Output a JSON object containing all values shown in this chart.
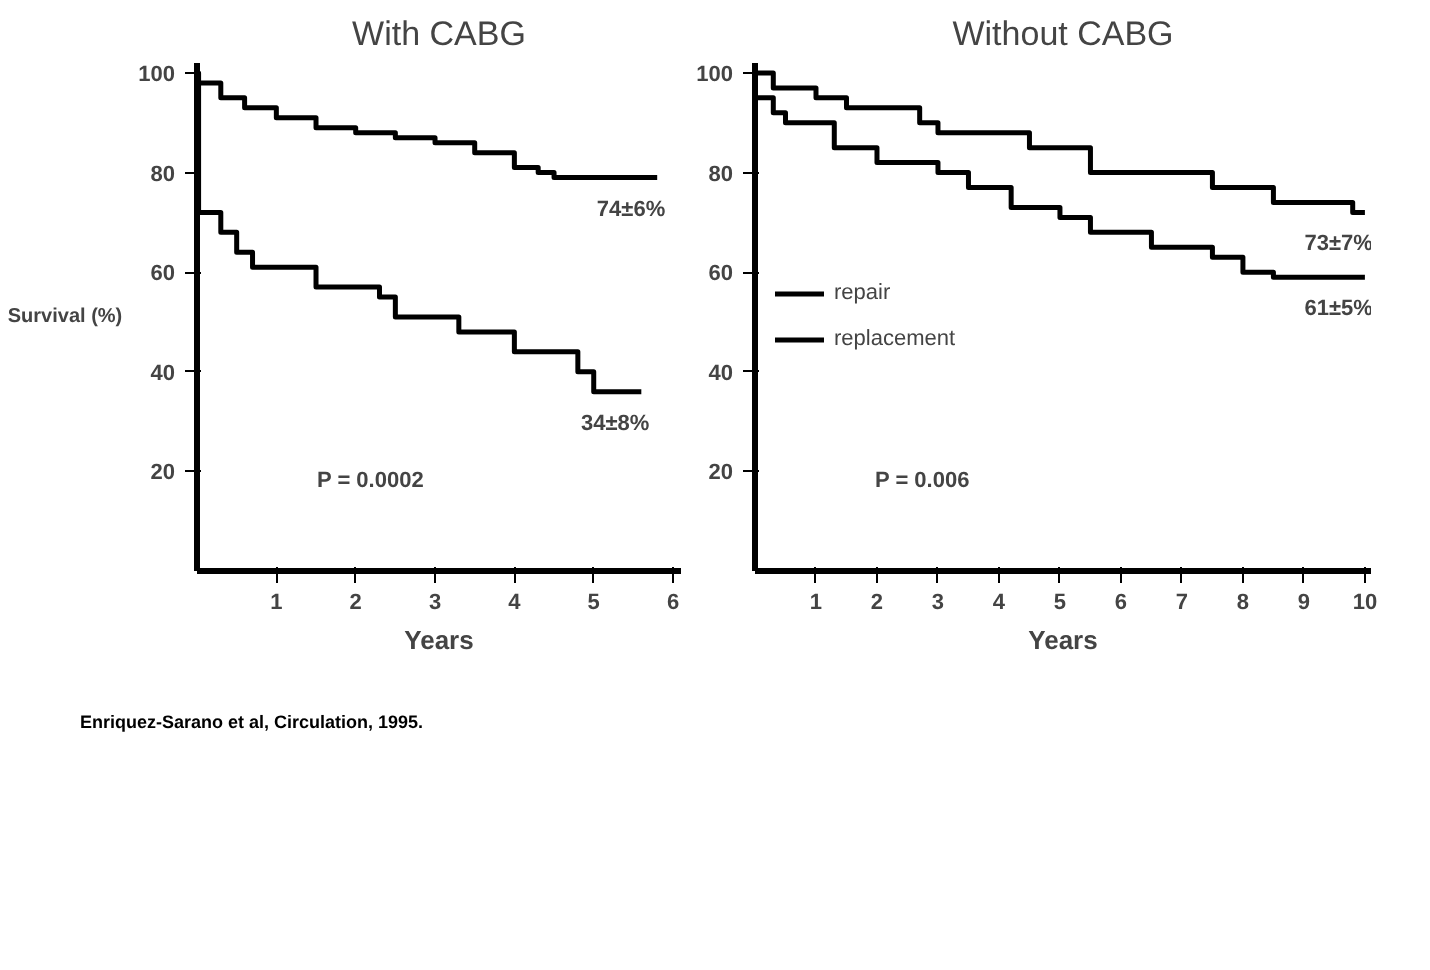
{
  "chart_data": [
    {
      "type": "step",
      "title": "With CABG",
      "xlabel": "Years",
      "ylabel": "Survival (%)",
      "xlim": [
        0,
        6.1
      ],
      "ylim": [
        0,
        102
      ],
      "xticks": [
        1,
        2,
        3,
        4,
        5,
        6
      ],
      "yticks": [
        20,
        40,
        60,
        80,
        100
      ],
      "grid": false,
      "legend": false,
      "series": [
        {
          "color": "#000000",
          "x": [
            0,
            0.3,
            0.6,
            1,
            1.5,
            2,
            2.5,
            3,
            3.5,
            4,
            4.3,
            4.5,
            5.8
          ],
          "values": [
            98,
            95,
            93,
            91,
            89,
            88,
            87,
            86,
            84,
            81,
            80,
            79,
            79
          ]
        },
        {
          "color": "#000000",
          "x": [
            0,
            0.02,
            0.3,
            0.5,
            0.7,
            1.5,
            2.3,
            2.5,
            3.3,
            4.0,
            4.8,
            5.0,
            5.6
          ],
          "values": [
            100,
            72,
            68,
            64,
            61,
            57,
            55,
            51,
            48,
            44,
            40,
            36,
            36
          ]
        }
      ],
      "annotations": [
        {
          "text": "74±6%",
          "x": 5.8,
          "y": 79
        },
        {
          "text": "34±8%",
          "x": 5.6,
          "y": 36
        },
        "P = 0.0002",
        "Enriquez-Sarano et al, Circulation, 1995."
      ]
    },
    {
      "type": "step",
      "title": "Without CABG",
      "xlabel": "Years",
      "xlim": [
        0,
        10.1
      ],
      "ylim": [
        0,
        102
      ],
      "xticks": [
        1,
        2,
        3,
        4,
        5,
        6,
        7,
        8,
        9,
        10
      ],
      "yticks": [
        20,
        40,
        60,
        80,
        100
      ],
      "grid": false,
      "legend": "left",
      "series": [
        {
          "name": "repair",
          "color": "#000000",
          "x": [
            0,
            0.3,
            1,
            1.5,
            2.7,
            3,
            4.5,
            5.5,
            7.5,
            8.5,
            9.8,
            10
          ],
          "values": [
            100,
            97,
            95,
            93,
            90,
            88,
            85,
            80,
            77,
            74,
            72,
            72
          ]
        },
        {
          "name": "replacement",
          "color": "#000000",
          "x": [
            0,
            0.3,
            0.5,
            1.3,
            2,
            3,
            3.5,
            4.2,
            5,
            5.5,
            6.5,
            7.5,
            8,
            8.5,
            10
          ],
          "values": [
            95,
            92,
            90,
            85,
            82,
            80,
            77,
            73,
            71,
            68,
            65,
            63,
            60,
            59,
            59
          ]
        }
      ],
      "annotations": [
        {
          "text": "73±7%",
          "x": 10,
          "y": 72
        },
        {
          "text": "61±5%",
          "x": 10,
          "y": 59
        },
        "P = 0.006"
      ]
    }
  ]
}
